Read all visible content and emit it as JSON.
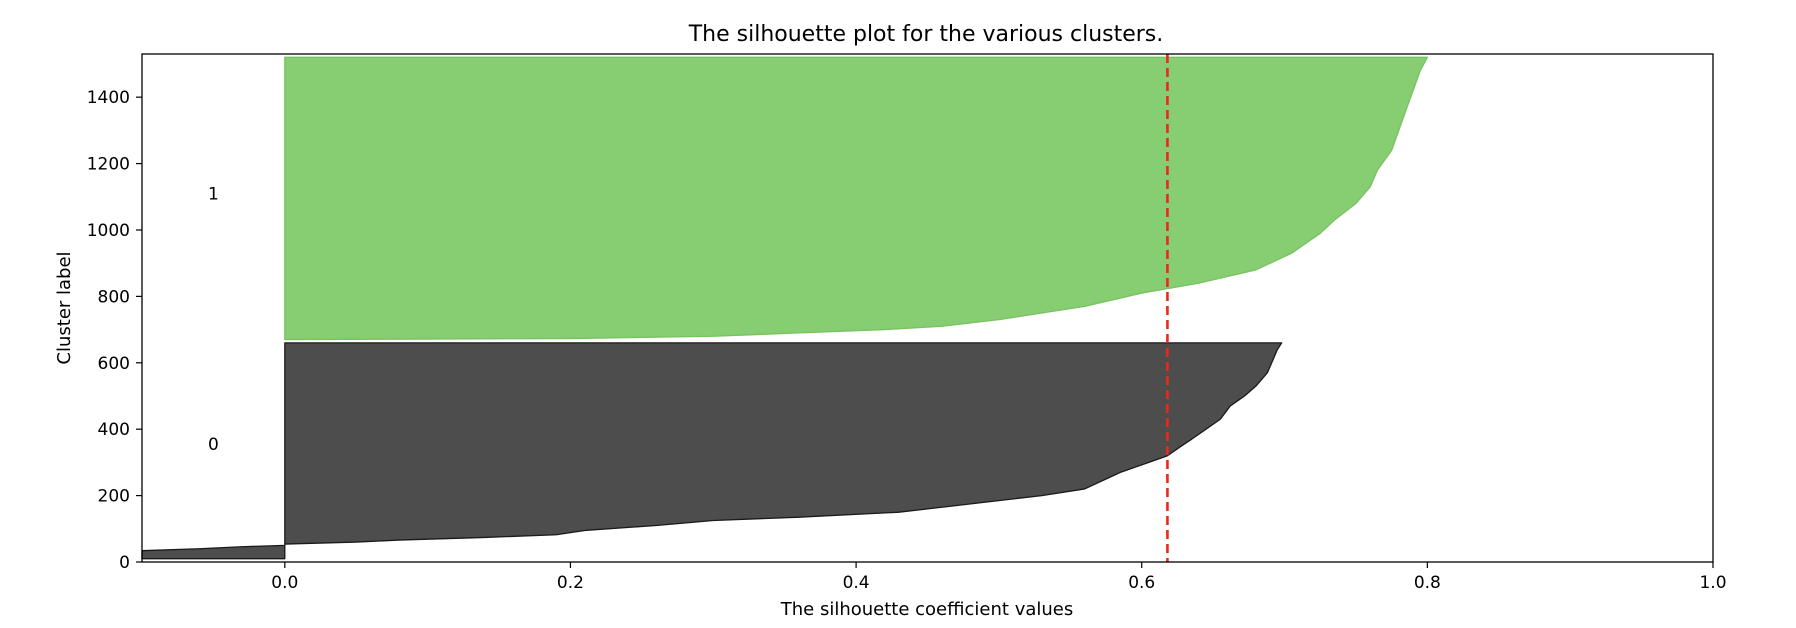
{
  "chart_data": {
    "type": "area",
    "title": "The silhouette plot for the various clusters.",
    "xlabel": "The silhouette coefficient values",
    "ylabel": "Cluster label",
    "xlim": [
      -0.1,
      1.0
    ],
    "ylim": [
      0,
      1530
    ],
    "xticks": [
      0.0,
      0.2,
      0.4,
      0.6,
      0.8,
      1.0
    ],
    "xtick_labels": [
      "0.0",
      "0.2",
      "0.4",
      "0.6",
      "0.8",
      "1.0"
    ],
    "yticks": [
      0,
      200,
      400,
      600,
      800,
      1000,
      1200,
      1400
    ],
    "ytick_labels": [
      "0",
      "200",
      "400",
      "600",
      "800",
      "1000",
      "1200",
      "1400"
    ],
    "grid": false,
    "average_silhouette_score": 0.618,
    "average_line_color": "#e8291c",
    "clusters": [
      {
        "label": "0",
        "label_y": 355,
        "color": "#4d4d4d",
        "edge_color": "#1a1a1a",
        "y_start": 10,
        "y_end": 660,
        "profile": [
          [
            10,
            -0.1
          ],
          [
            18,
            -0.1
          ],
          [
            26,
            -0.1
          ],
          [
            34,
            -0.1
          ],
          [
            40,
            -0.06
          ],
          [
            46,
            -0.03
          ],
          [
            50,
            0.0
          ],
          [
            54,
            0.0
          ],
          [
            60,
            0.05
          ],
          [
            66,
            0.08
          ],
          [
            74,
            0.14
          ],
          [
            82,
            0.19
          ],
          [
            95,
            0.21
          ],
          [
            110,
            0.26
          ],
          [
            125,
            0.3
          ],
          [
            135,
            0.36
          ],
          [
            150,
            0.43
          ],
          [
            165,
            0.46
          ],
          [
            180,
            0.49
          ],
          [
            200,
            0.53
          ],
          [
            220,
            0.56
          ],
          [
            250,
            0.575
          ],
          [
            270,
            0.585
          ],
          [
            300,
            0.605
          ],
          [
            320,
            0.618
          ],
          [
            350,
            0.628
          ],
          [
            370,
            0.635
          ],
          [
            400,
            0.645
          ],
          [
            430,
            0.655
          ],
          [
            470,
            0.662
          ],
          [
            500,
            0.672
          ],
          [
            530,
            0.68
          ],
          [
            570,
            0.688
          ],
          [
            610,
            0.692
          ],
          [
            640,
            0.695
          ],
          [
            660,
            0.698
          ]
        ]
      },
      {
        "label": "1",
        "label_y": 1110,
        "color": "#87ce72",
        "edge_color": "#77c261",
        "y_start": 670,
        "y_end": 1520,
        "profile": [
          [
            670,
            0.0
          ],
          [
            673,
            0.2
          ],
          [
            676,
            0.24
          ],
          [
            680,
            0.3
          ],
          [
            690,
            0.36
          ],
          [
            700,
            0.42
          ],
          [
            710,
            0.46
          ],
          [
            730,
            0.5
          ],
          [
            750,
            0.53
          ],
          [
            770,
            0.56
          ],
          [
            790,
            0.58
          ],
          [
            810,
            0.6
          ],
          [
            825,
            0.62
          ],
          [
            840,
            0.64
          ],
          [
            860,
            0.66
          ],
          [
            880,
            0.68
          ],
          [
            900,
            0.69
          ],
          [
            930,
            0.705
          ],
          [
            960,
            0.715
          ],
          [
            990,
            0.725
          ],
          [
            1030,
            0.735
          ],
          [
            1080,
            0.75
          ],
          [
            1130,
            0.76
          ],
          [
            1180,
            0.765
          ],
          [
            1240,
            0.775
          ],
          [
            1300,
            0.78
          ],
          [
            1360,
            0.785
          ],
          [
            1420,
            0.79
          ],
          [
            1480,
            0.795
          ],
          [
            1520,
            0.8
          ]
        ]
      }
    ]
  }
}
